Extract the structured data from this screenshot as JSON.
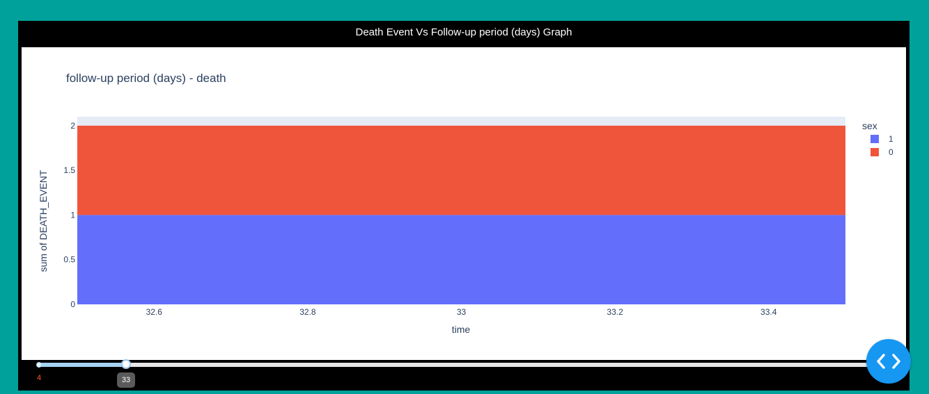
{
  "header": {
    "title": "Death Event Vs Follow-up period (days) Graph"
  },
  "chart_data": {
    "type": "area",
    "title": "follow-up period (days) - death",
    "xlabel": "time",
    "ylabel": "sum of DEATH_EVENT",
    "x": [
      32.5,
      33.5
    ],
    "xlim": [
      32.5,
      33.5
    ],
    "ylim": [
      0,
      2.1
    ],
    "xticks": [
      32.6,
      32.8,
      33,
      33.2,
      33.4
    ],
    "xtick_labels": [
      "32.6",
      "32.8",
      "33",
      "33.2",
      "33.4"
    ],
    "yticks": [
      0,
      0.5,
      1,
      1.5,
      2
    ],
    "ytick_labels": [
      "0",
      "0.5",
      "1",
      "1.5",
      "2"
    ],
    "stacked": true,
    "series": [
      {
        "name": "1",
        "values": [
          1,
          1
        ],
        "color": "#636efa"
      },
      {
        "name": "0",
        "values": [
          1,
          1
        ],
        "color": "#ef553b"
      }
    ],
    "legend": {
      "title": "sex",
      "position": "right"
    },
    "plot_bg": "#e5ecf6",
    "grid": false
  },
  "slider": {
    "min_label": "4",
    "value": 33,
    "value_label": "33",
    "min": 4,
    "max": 285,
    "track_color": "#a7d3f2"
  },
  "toggle": {
    "icon": "code-brackets-icon",
    "color": "#1597f2"
  }
}
